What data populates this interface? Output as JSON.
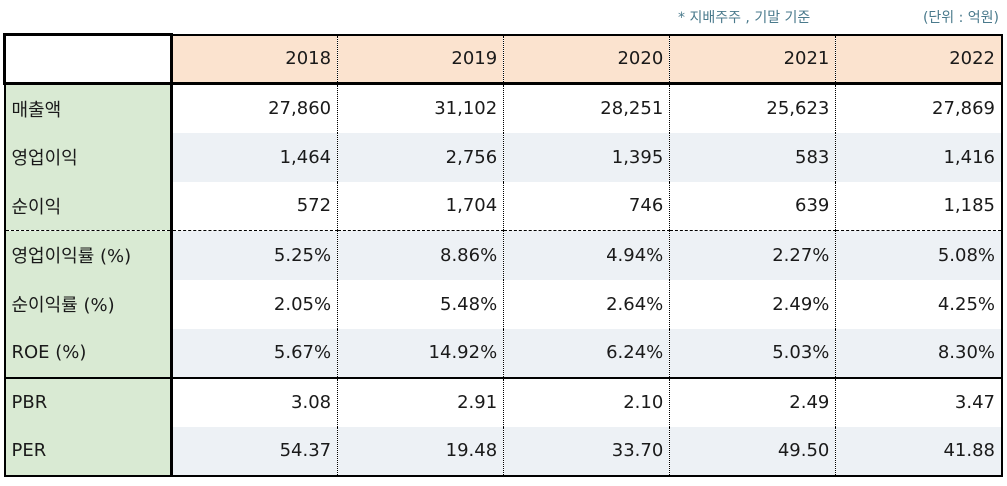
{
  "notes": {
    "basis": "* 지배주주 , 기말 기준",
    "unit": "(단위 : 억원)"
  },
  "years": [
    "2018",
    "2019",
    "2020",
    "2021",
    "2022"
  ],
  "rows": [
    {
      "label": "매출액",
      "values": [
        "27,860",
        "31,102",
        "28,251",
        "25,623",
        "27,869"
      ]
    },
    {
      "label": "영업이익",
      "values": [
        "1,464",
        "2,756",
        "1,395",
        "583",
        "1,416"
      ]
    },
    {
      "label": "순이익",
      "values": [
        "572",
        "1,704",
        "746",
        "639",
        "1,185"
      ]
    },
    {
      "label": "영업이익률 (%)",
      "values": [
        "5.25%",
        "8.86%",
        "4.94%",
        "2.27%",
        "5.08%"
      ]
    },
    {
      "label": "순이익률 (%)",
      "values": [
        "2.05%",
        "5.48%",
        "2.64%",
        "2.49%",
        "4.25%"
      ]
    },
    {
      "label": "ROE (%)",
      "values": [
        "5.67%",
        "14.92%",
        "6.24%",
        "5.03%",
        "8.30%"
      ]
    },
    {
      "label": "PBR",
      "values": [
        "3.08",
        "2.91",
        "2.10",
        "2.49",
        "3.47"
      ]
    },
    {
      "label": "PER",
      "values": [
        "54.37",
        "19.48",
        "33.70",
        "49.50",
        "41.88"
      ]
    }
  ]
}
